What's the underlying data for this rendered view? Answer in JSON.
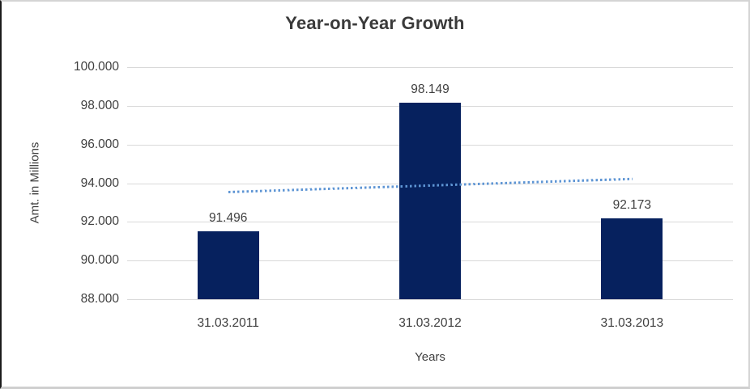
{
  "chart_data": {
    "type": "bar",
    "title": "Year-on-Year Growth",
    "xlabel": "Years",
    "ylabel": "Amt. in Millions",
    "categories": [
      "31.03.2011",
      "31.03.2012",
      "31.03.2013"
    ],
    "values": [
      91.496,
      98.149,
      92.173
    ],
    "value_labels": [
      "91.496",
      "98.149",
      "92.173"
    ],
    "ylim": [
      88,
      100
    ],
    "yticks": [
      100,
      98,
      96,
      94,
      92,
      90,
      88
    ],
    "ytick_labels": [
      "100.000",
      "98.000",
      "96.000",
      "94.000",
      "92.000",
      "90.000",
      "88.000"
    ],
    "grid": true,
    "legend": "none",
    "bar_color": "#06215e",
    "trendline": {
      "type": "linear",
      "style": "dotted",
      "color": "#5e95d4",
      "start_value": 93.6,
      "end_value": 94.28
    },
    "colors": {
      "text": "#404040",
      "title_text": "#3a3a3a",
      "gridline": "#d9d9d9",
      "background": "#ffffff"
    }
  }
}
